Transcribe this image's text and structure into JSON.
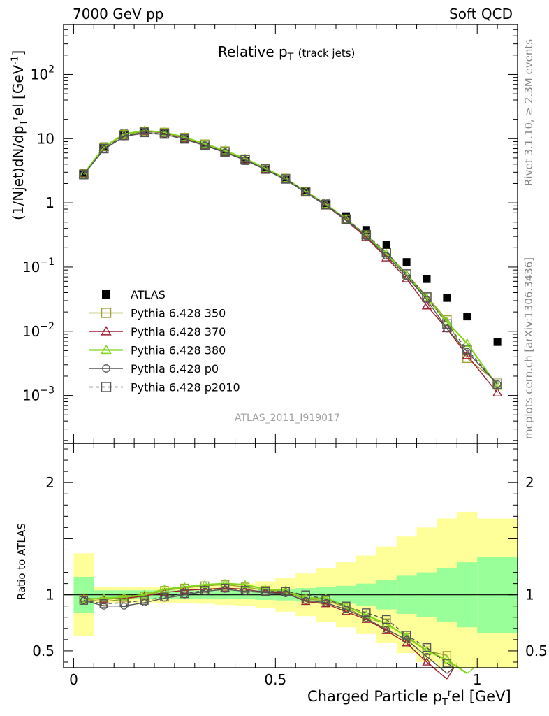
{
  "header": {
    "left": "7000 GeV pp",
    "right": "Soft QCD",
    "rivet": "Rivet 3.1.10, ≥ 2.3M events",
    "mcplots": "mcplots.cern.ch [arXiv:1306.3436]"
  },
  "chart_data": [
    {
      "type": "scatter",
      "title_main": "Relative p",
      "title_sub": "T",
      "title_note": "(track jets)",
      "analysis_tag": "ATLAS_2011_I919017",
      "ylabel": "(1/Njet)dN/dp",
      "ylabel_sub": "T",
      "ylabel_sup": "r",
      "ylabel_tail": "el [GeV",
      "ylabel_unit_sup": "-1",
      "ylabel_close": "]",
      "yscale": "log",
      "xlim": [
        -0.025,
        1.1
      ],
      "ylim": [
        0.00018,
        600
      ],
      "y_ticklabels": [
        {
          "base": "10",
          "exp": "2"
        },
        {
          "base": "10",
          "exp": ""
        },
        {
          "base": "1",
          "exp": ""
        },
        {
          "base": "10",
          "exp": "−1"
        },
        {
          "base": "10",
          "exp": "−2"
        },
        {
          "base": "10",
          "exp": "−3"
        }
      ],
      "legend_position": "middle-left",
      "x": [
        0.025,
        0.075,
        0.125,
        0.175,
        0.225,
        0.275,
        0.325,
        0.375,
        0.425,
        0.475,
        0.525,
        0.575,
        0.625,
        0.675,
        0.725,
        0.775,
        0.825,
        0.875,
        0.925,
        0.975,
        1.05
      ],
      "series": [
        {
          "name": "ATLAS",
          "color": "#000000",
          "marker": "filled-square",
          "line": "none",
          "values": [
            2.9,
            7.6,
            12.0,
            13.2,
            12.0,
            9.8,
            7.6,
            5.9,
            4.5,
            3.3,
            2.3,
            1.55,
            0.98,
            0.62,
            0.38,
            0.22,
            0.12,
            0.065,
            0.033,
            0.017,
            0.0068
          ]
        },
        {
          "name": "Pythia 6.428 350",
          "color": "#a0a030",
          "marker": "open-square",
          "line": "solid",
          "values": [
            2.8,
            7.2,
            11.5,
            13.0,
            12.5,
            10.4,
            8.2,
            6.4,
            4.8,
            3.4,
            2.4,
            1.48,
            0.93,
            0.55,
            0.3,
            0.17,
            0.078,
            0.035,
            0.015,
            0.0038,
            0.0016
          ]
        },
        {
          "name": "Pythia 6.428 370",
          "color": "#a01c30",
          "marker": "open-triangle",
          "line": "solid",
          "values": [
            2.85,
            7.3,
            11.6,
            13.1,
            12.3,
            10.2,
            8.0,
            6.2,
            4.7,
            3.35,
            2.35,
            1.45,
            0.91,
            0.53,
            0.29,
            0.14,
            0.066,
            0.025,
            0.011,
            0.0042,
            0.0011
          ]
        },
        {
          "name": "Pythia 6.428 380",
          "color": "#7fd81c",
          "marker": "open-triangle",
          "line": "solid",
          "values": [
            2.8,
            7.4,
            11.8,
            13.3,
            12.6,
            10.5,
            8.3,
            6.5,
            4.9,
            3.45,
            2.4,
            1.5,
            0.95,
            0.56,
            0.31,
            0.16,
            0.076,
            0.033,
            0.014,
            0.0065,
            0.0014
          ]
        },
        {
          "name": "Pythia 6.428 p0",
          "color": "#555555",
          "marker": "open-circle",
          "line": "solid",
          "values": [
            2.75,
            6.8,
            10.8,
            12.2,
            11.6,
            9.8,
            7.8,
            6.1,
            4.6,
            3.3,
            2.3,
            1.44,
            0.92,
            0.54,
            0.3,
            0.15,
            0.072,
            0.031,
            0.011,
            0.0048,
            0.0015
          ]
        },
        {
          "name": "Pythia 6.428 p2010",
          "color": "#555555",
          "marker": "open-square",
          "line": "dashed",
          "values": [
            2.75,
            7.0,
            11.2,
            12.5,
            11.8,
            9.9,
            7.9,
            6.2,
            4.7,
            3.35,
            2.35,
            1.5,
            0.94,
            0.56,
            0.32,
            0.17,
            0.078,
            0.034,
            0.013,
            0.0052,
            0.0015
          ]
        }
      ]
    },
    {
      "type": "line",
      "xlabel": "Charged Particle p",
      "xlabel_sub": "T",
      "xlabel_sup": "r",
      "xlabel_tail": "el [GeV]",
      "ylabel": "Ratio to ATLAS",
      "xlim": [
        -0.025,
        1.1
      ],
      "ylim": [
        0.35,
        2.35
      ],
      "x_ticklabels": [
        "0",
        "0.5",
        "1"
      ],
      "y_ticklabels": [
        "0.5",
        "1",
        "2"
      ],
      "reference_line": 1,
      "bands": {
        "edges": [
          0,
          0.05,
          0.1,
          0.15,
          0.2,
          0.25,
          0.3,
          0.35,
          0.4,
          0.45,
          0.5,
          0.55,
          0.6,
          0.65,
          0.7,
          0.75,
          0.8,
          0.85,
          0.9,
          0.95,
          1.0,
          1.1
        ],
        "stat_color": "#99ff99",
        "syst_color": "#ffff99",
        "stat_half_width": [
          0.16,
          0.04,
          0.04,
          0.04,
          0.04,
          0.04,
          0.04,
          0.04,
          0.04,
          0.045,
          0.05,
          0.06,
          0.07,
          0.08,
          0.1,
          0.13,
          0.17,
          0.2,
          0.24,
          0.29,
          0.34
        ],
        "syst_half_width": [
          0.37,
          0.07,
          0.07,
          0.07,
          0.07,
          0.07,
          0.08,
          0.09,
          0.1,
          0.12,
          0.15,
          0.19,
          0.24,
          0.29,
          0.35,
          0.43,
          0.52,
          0.6,
          0.68,
          0.74,
          0.68
        ]
      },
      "series": [
        {
          "name": "Pythia 6.428 350",
          "values": [
            0.96,
            0.94,
            0.96,
            0.99,
            1.04,
            1.06,
            1.08,
            1.09,
            1.07,
            1.04,
            1.03,
            0.96,
            0.95,
            0.89,
            0.79,
            0.75,
            0.62,
            0.5,
            0.46,
            null,
            null
          ]
        },
        {
          "name": "Pythia 6.428 370",
          "values": [
            0.97,
            0.96,
            0.97,
            0.99,
            1.02,
            1.04,
            1.05,
            1.06,
            1.05,
            1.02,
            1.02,
            0.94,
            0.92,
            0.85,
            0.78,
            0.68,
            0.57,
            0.4,
            0.25,
            null,
            null
          ]
        },
        {
          "name": "Pythia 6.428 380",
          "values": [
            0.96,
            0.97,
            0.98,
            1.0,
            1.05,
            1.07,
            1.09,
            1.1,
            1.09,
            1.05,
            1.04,
            0.97,
            0.97,
            0.9,
            0.82,
            0.74,
            0.63,
            0.5,
            0.42,
            0.3,
            null
          ]
        },
        {
          "name": "Pythia 6.428 p0",
          "values": [
            0.95,
            0.9,
            0.9,
            0.93,
            0.97,
            1.0,
            1.03,
            1.05,
            1.03,
            1.02,
            1.01,
            0.95,
            0.93,
            0.87,
            0.79,
            0.69,
            0.6,
            0.45,
            0.3,
            null,
            null
          ]
        },
        {
          "name": "Pythia 6.428 p2010",
          "values": [
            0.95,
            0.92,
            0.93,
            0.95,
            0.98,
            1.01,
            1.04,
            1.06,
            1.04,
            1.03,
            1.03,
            1.0,
            0.96,
            0.9,
            0.84,
            0.78,
            0.64,
            0.53,
            0.39,
            null,
            null
          ]
        }
      ]
    }
  ]
}
